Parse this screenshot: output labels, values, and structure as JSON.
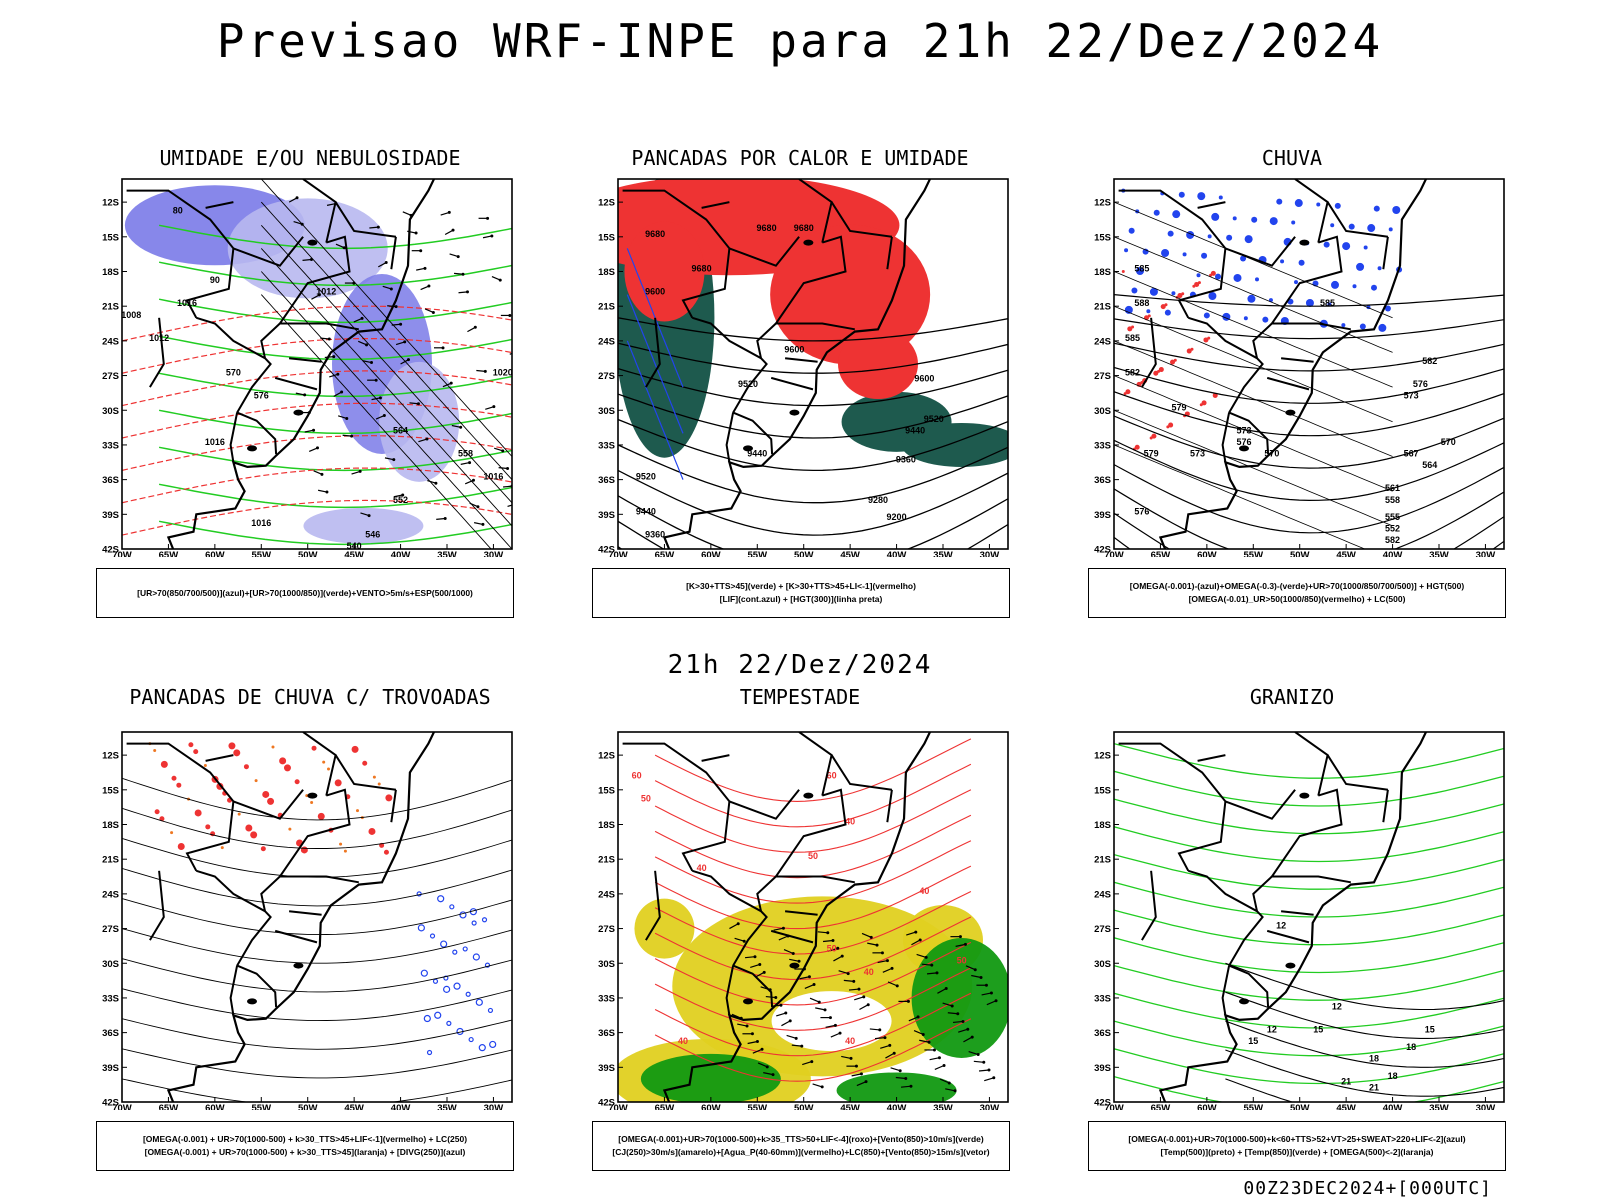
{
  "header": {
    "title": "Previsao WRF-INPE  para 21h 22/Dez/2024"
  },
  "middle_time": "21h 22/Dez/2024",
  "footer": "00Z23DEC2024+[000UTC]",
  "axes": {
    "lon_labels": [
      "70W",
      "65W",
      "60W",
      "55W",
      "50W",
      "45W",
      "40W",
      "35W",
      "30W"
    ],
    "lat_labels": [
      "12S",
      "15S",
      "18S",
      "21S",
      "24S",
      "27S",
      "30S",
      "33S",
      "36S",
      "39S",
      "42S"
    ]
  },
  "colors": {
    "red": "#ee3333",
    "green": "#22cc22",
    "blue": "#2244ee",
    "lightblue": "#b8b8f0",
    "midblue": "#7a7ae8",
    "darkteal": "#1e5a4e",
    "yellow": "#e0d020",
    "orange": "#ee7722",
    "purple": "#aa44cc"
  },
  "panels": [
    {
      "id": "umidade",
      "title": "UMIDADE E/OU NEBULOSIDADE",
      "caption": [
        "[UR>70(850/700/500)](azul)+[UR>70(1000/850)](verde)+VENTO>5m/s+ESP(500/1000)"
      ],
      "contour_labels": [
        "1012",
        "1016",
        "1012",
        "1016",
        "1020",
        "1016",
        "1016",
        "1008",
        "570",
        "576",
        "564",
        "558",
        "552",
        "546",
        "540",
        "80",
        "90"
      ]
    },
    {
      "id": "pancadas-calor",
      "title": "PANCADAS POR CALOR E UMIDADE",
      "caption": [
        "[K>30+TTS>45](verde) + [K>30+TTS>45+LI<-1](vermelho)",
        "[LIF](cont.azul) + [HGT(300)](linha preta)"
      ],
      "contour_labels": [
        "9680",
        "9680",
        "9680",
        "9680",
        "9600",
        "9600",
        "9600",
        "9520",
        "9520",
        "9440",
        "9440",
        "9360",
        "9280",
        "9200",
        "9520",
        "9440",
        "9360"
      ]
    },
    {
      "id": "chuva",
      "title": "CHUVA",
      "caption": [
        "[OMEGA(-0.001)-(azul)+OMEGA(-0.3)-(verde)+UR>70(1000/850/700/500)] + HGT(500)",
        "[OMEGA(-0.01)_UR>50(1000/850)(vermelho) + LC(500)"
      ],
      "contour_labels": [
        "585",
        "588",
        "585",
        "582",
        "579",
        "585",
        "582",
        "576",
        "573",
        "570",
        "567",
        "564",
        "561",
        "558",
        "555",
        "552",
        "582",
        "579",
        "576",
        "573",
        "576",
        "573",
        "570"
      ]
    },
    {
      "id": "trovoadas",
      "title": "PANCADAS DE CHUVA C/ TROVOADAS",
      "caption": [
        "[OMEGA(-0.001) + UR>70(1000-500) + k>30_TTS>45+LIF<-1](vermelho) + LC(250)",
        "[OMEGA(-0.001) + UR>70(1000-500) + k>30_TTS>45](laranja) + [DIVG(250)](azul)"
      ],
      "contour_labels": []
    },
    {
      "id": "tempestade",
      "title": "TEMPESTADE",
      "caption": [
        "[OMEGA(-0.001)+UR>70(1000-500)+k>35_TTS>50+LIF<-4](roxo)+[Vento(850)>10m/s](verde)",
        "[CJ(250)>30m/s](amarelo)+[Agua_P(40-60mm)](vermelho)+LC(850)+[Vento(850)>15m/s](vetor)"
      ],
      "contour_labels": [
        "60",
        "50",
        "60",
        "40",
        "50",
        "40",
        "50",
        "40",
        "40",
        "50",
        "40",
        "40"
      ]
    },
    {
      "id": "granizo",
      "title": "GRANIZO",
      "caption": [
        "[OMEGA(-0.001)+UR>70(1000-500)+k<60+TTS>52+VT>25+SWEAT>220+LIF<-2](azul)",
        "[Temp(500)](preto) + [Temp(850)](verde) + [OMEGA(500)<-2](laranja)"
      ],
      "contour_labels": [
        "12",
        "15",
        "18",
        "21",
        "18",
        "15",
        "12",
        "12",
        "15",
        "18",
        "21"
      ]
    }
  ]
}
